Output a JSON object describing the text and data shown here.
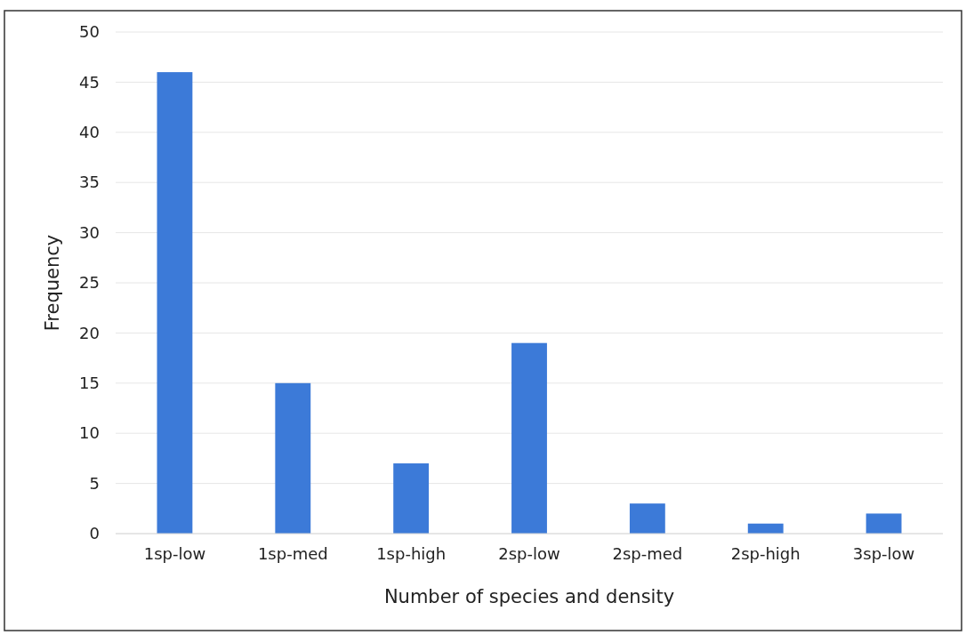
{
  "chart_data": {
    "type": "bar",
    "xlabel": "Number of species and density",
    "ylabel": "Frequency",
    "categories": [
      "1sp-low",
      "1sp-med",
      "1sp-high",
      "2sp-low",
      "2sp-med",
      "2sp-high",
      "3sp-low"
    ],
    "values": [
      46,
      15,
      7,
      19,
      3,
      1,
      2
    ],
    "color": "#3c7ad8",
    "ylim": [
      0,
      50
    ],
    "yticks": [
      0,
      5,
      10,
      15,
      20,
      25,
      30,
      35,
      40,
      45,
      50
    ],
    "grid": "y"
  }
}
